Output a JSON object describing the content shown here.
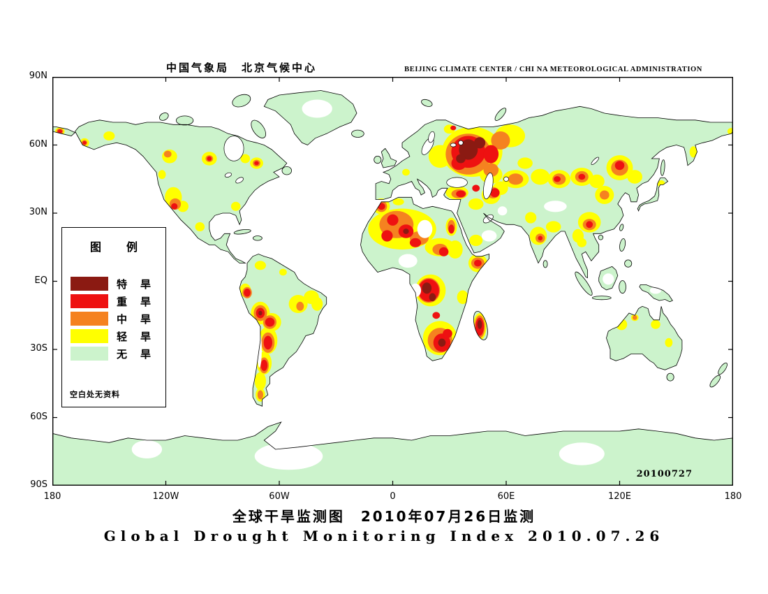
{
  "header": {
    "title_cn": "中国气象局　北京气候中心",
    "title_en": "BEIJING CLIMATE CENTER / CHI NA METEOROLOGICAL ADMINISTRATION"
  },
  "map": {
    "date_stamp": "20100727",
    "lat_labels": [
      "90N",
      "60N",
      "30N",
      "EQ",
      "30S",
      "60S",
      "90S"
    ],
    "lon_labels": [
      "180",
      "120W",
      "60W",
      "0",
      "60E",
      "120E",
      "180"
    ]
  },
  "legend": {
    "title": "图　例",
    "items": [
      {
        "label": "特　旱",
        "level": "extreme"
      },
      {
        "label": "重　旱",
        "level": "severe"
      },
      {
        "label": "中　旱",
        "level": "moderate"
      },
      {
        "label": "轻　旱",
        "level": "light"
      },
      {
        "label": "无　旱",
        "level": "none"
      }
    ],
    "note": "空白处无资料"
  },
  "footer": {
    "title_cn": "全球干旱监测图　2010年07月26日监测",
    "title_en": "Global Drought Monitoring Index  2010.07.26"
  },
  "colors": {
    "extreme": "#8b1a12",
    "severe": "#ee1111",
    "moderate": "#f58220",
    "light": "#ffff00",
    "none": "#ccf3cc",
    "ocean": "#ffffff",
    "outline": "#000000"
  }
}
